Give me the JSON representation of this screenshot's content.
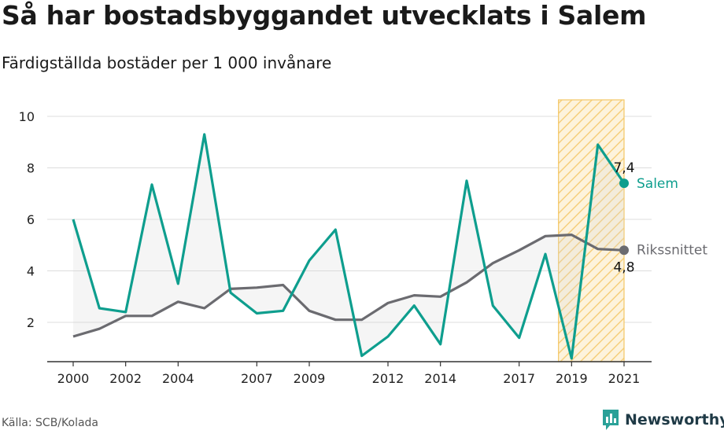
{
  "chart_data": {
    "type": "line",
    "title": "Så har bostadsbyggandet utvecklats i Salem",
    "subtitle": "Färdigställda bostäder per 1 000 invånare",
    "source": "Källa: SCB/Kolada",
    "brand": "Newsworthy",
    "x": [
      2000,
      2001,
      2002,
      2003,
      2004,
      2005,
      2006,
      2007,
      2008,
      2009,
      2010,
      2011,
      2012,
      2013,
      2014,
      2015,
      2016,
      2017,
      2018,
      2019,
      2020,
      2021
    ],
    "x_tick_labels": [
      "2000",
      "2002",
      "2004",
      "2007",
      "2009",
      "2012",
      "2014",
      "2017",
      "2019",
      "2021"
    ],
    "y_ticks": [
      2,
      4,
      6,
      8,
      10
    ],
    "ylim": [
      0.5,
      10.7
    ],
    "xlim": [
      1999.0,
      2022.0
    ],
    "highlight_range": [
      2018.5,
      2021.0
    ],
    "grid": true,
    "series": [
      {
        "name": "Salem",
        "color": "#0e9e8e",
        "values": [
          6.0,
          2.55,
          2.4,
          7.35,
          3.5,
          9.3,
          3.15,
          2.35,
          2.45,
          4.4,
          5.6,
          0.7,
          1.45,
          2.65,
          1.15,
          7.5,
          2.65,
          1.4,
          4.65,
          0.6,
          8.9,
          7.4
        ],
        "end_label": "7,4"
      },
      {
        "name": "Rikssnittet",
        "color": "#6b6b70",
        "values": [
          1.45,
          1.75,
          2.25,
          2.25,
          2.8,
          2.55,
          3.3,
          3.35,
          3.45,
          2.45,
          2.1,
          2.1,
          2.75,
          3.05,
          3.0,
          3.55,
          4.3,
          4.8,
          5.35,
          5.4,
          4.85,
          4.8
        ],
        "end_label": "4,8"
      }
    ]
  }
}
